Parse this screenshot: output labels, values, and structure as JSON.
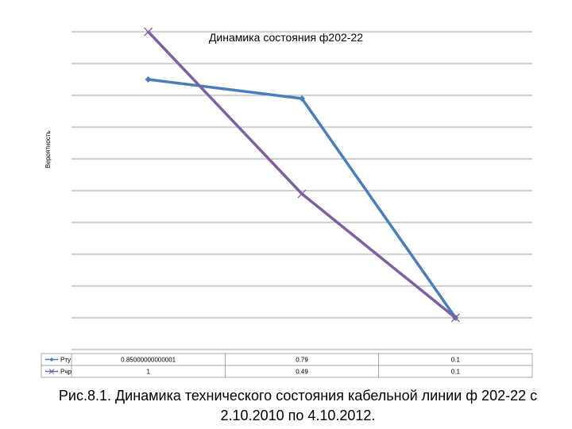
{
  "chart_data": {
    "type": "line",
    "title": "Динамика состояния ф202-22",
    "ylabel": "Вероятность",
    "xlabel": "",
    "ylim": [
      0,
      1.0
    ],
    "grid": true,
    "legend_placement": "data-table",
    "categories": [
      "",
      "",
      ""
    ],
    "series": [
      {
        "name": "Pту",
        "values": [
          0.85,
          0.79,
          0.1
        ],
        "labels": [
          "0.85000000000001",
          "0.79",
          "0.1"
        ],
        "color": "#4a7ebb",
        "marker": "diamond"
      },
      {
        "name": "Pчр",
        "values": [
          1,
          0.49,
          0.1
        ],
        "labels": [
          "1",
          "0.49",
          "0.1"
        ],
        "color": "#7d60a0",
        "marker": "x"
      }
    ]
  },
  "caption": {
    "line1": "Рис.8.1. Динамика технического состояния кабельной линии ф 202-22 с",
    "line2": "2.10.2010 по 4.10.2012."
  }
}
